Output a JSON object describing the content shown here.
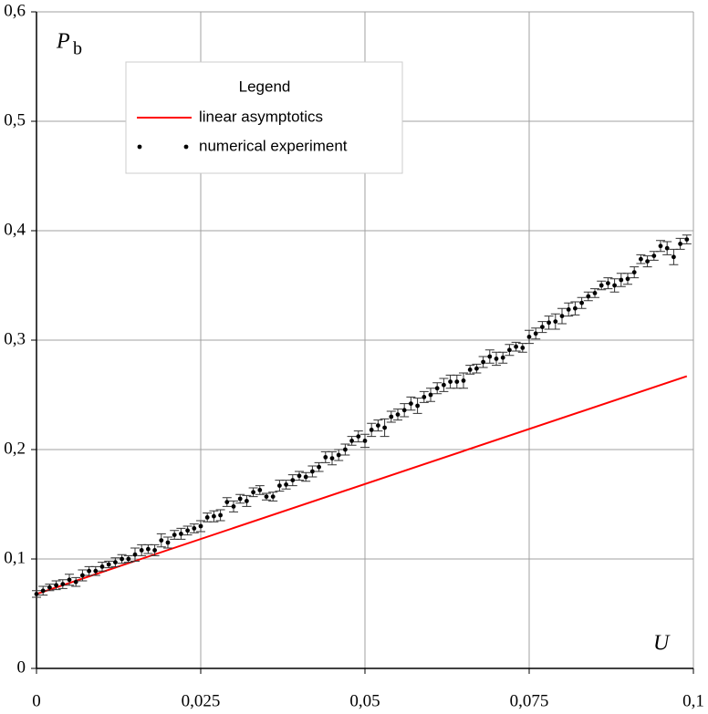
{
  "chart_data": {
    "type": "scatter",
    "x_label": "U",
    "y_label": "P",
    "y_label_subscript": "b",
    "legend_title": "Legend",
    "xlim": [
      0,
      0.1
    ],
    "ylim": [
      0,
      0.6
    ],
    "xticks": [
      0,
      {
        "value": 0.025,
        "label": "0,025"
      },
      {
        "value": 0.05,
        "label": "0,05"
      },
      {
        "value": 0.075,
        "label": "0,075"
      },
      {
        "value": 0.1,
        "label": "0,1"
      }
    ],
    "yticks": [
      0,
      {
        "value": 0.1,
        "label": "0,1"
      },
      {
        "value": 0.2,
        "label": "0,2"
      },
      {
        "value": 0.3,
        "label": "0,3"
      },
      {
        "value": 0.4,
        "label": "0,4"
      },
      {
        "value": 0.5,
        "label": "0,5"
      },
      {
        "value": 0.6,
        "label": "0,6"
      }
    ],
    "grid": true,
    "series": [
      {
        "name": "linear asymptotics",
        "type": "line",
        "color": "#ff0000",
        "x": [
          0,
          0.099
        ],
        "values": [
          0.068,
          0.267
        ]
      },
      {
        "name": "numerical experiment",
        "type": "scatter",
        "color": "#000000",
        "x": [
          0,
          0.001,
          0.002,
          0.003,
          0.004,
          0.005,
          0.006,
          0.007,
          0.008,
          0.009,
          0.01,
          0.011,
          0.012,
          0.013,
          0.014,
          0.015,
          0.016,
          0.017,
          0.018,
          0.019,
          0.02,
          0.021,
          0.022,
          0.023,
          0.024,
          0.025,
          0.026,
          0.027,
          0.028,
          0.029,
          0.03,
          0.031,
          0.032,
          0.033,
          0.034,
          0.035,
          0.036,
          0.037,
          0.038,
          0.039,
          0.04,
          0.041,
          0.042,
          0.043,
          0.044,
          0.045,
          0.046,
          0.047,
          0.048,
          0.049,
          0.05,
          0.051,
          0.052,
          0.053,
          0.054,
          0.055,
          0.056,
          0.057,
          0.058,
          0.059,
          0.06,
          0.061,
          0.062,
          0.063,
          0.064,
          0.065,
          0.066,
          0.067,
          0.068,
          0.069,
          0.07,
          0.071,
          0.072,
          0.073,
          0.074,
          0.075,
          0.076,
          0.077,
          0.078,
          0.079,
          0.08,
          0.081,
          0.082,
          0.083,
          0.084,
          0.085,
          0.086,
          0.087,
          0.088,
          0.089,
          0.09,
          0.091,
          0.092,
          0.093,
          0.094,
          0.095,
          0.096,
          0.097,
          0.098,
          0.099
        ],
        "values": [
          0.068,
          0.071,
          0.074,
          0.076,
          0.077,
          0.081,
          0.079,
          0.085,
          0.089,
          0.089,
          0.093,
          0.095,
          0.097,
          0.1,
          0.1,
          0.104,
          0.108,
          0.109,
          0.108,
          0.117,
          0.115,
          0.122,
          0.123,
          0.126,
          0.128,
          0.13,
          0.138,
          0.139,
          0.14,
          0.152,
          0.148,
          0.155,
          0.153,
          0.161,
          0.163,
          0.157,
          0.157,
          0.167,
          0.168,
          0.172,
          0.176,
          0.175,
          0.18,
          0.184,
          0.193,
          0.192,
          0.195,
          0.2,
          0.208,
          0.212,
          0.208,
          0.218,
          0.222,
          0.22,
          0.23,
          0.232,
          0.236,
          0.242,
          0.24,
          0.248,
          0.25,
          0.256,
          0.259,
          0.262,
          0.262,
          0.263,
          0.273,
          0.274,
          0.28,
          0.285,
          0.283,
          0.284,
          0.291,
          0.294,
          0.293,
          0.303,
          0.306,
          0.312,
          0.316,
          0.317,
          0.322,
          0.328,
          0.329,
          0.334,
          0.34,
          0.343,
          0.35,
          0.352,
          0.35,
          0.355,
          0.356,
          0.362,
          0.374,
          0.372,
          0.377,
          0.386,
          0.384,
          0.376,
          0.388,
          0.392
        ],
        "errors": [
          0.003,
          0.004,
          0.003,
          0.004,
          0.004,
          0.005,
          0.004,
          0.005,
          0.004,
          0.004,
          0.004,
          0.003,
          0.004,
          0.004,
          0.003,
          0.006,
          0.005,
          0.004,
          0.005,
          0.006,
          0.005,
          0.004,
          0.005,
          0.004,
          0.004,
          0.005,
          0.004,
          0.005,
          0.005,
          0.004,
          0.005,
          0.004,
          0.005,
          0.004,
          0.004,
          0.003,
          0.004,
          0.005,
          0.004,
          0.005,
          0.004,
          0.004,
          0.005,
          0.004,
          0.005,
          0.006,
          0.005,
          0.005,
          0.004,
          0.005,
          0.006,
          0.006,
          0.005,
          0.008,
          0.005,
          0.005,
          0.006,
          0.006,
          0.007,
          0.005,
          0.006,
          0.005,
          0.006,
          0.006,
          0.006,
          0.007,
          0.004,
          0.004,
          0.005,
          0.006,
          0.006,
          0.005,
          0.005,
          0.004,
          0.004,
          0.006,
          0.005,
          0.005,
          0.006,
          0.007,
          0.007,
          0.006,
          0.006,
          0.005,
          0.004,
          0.004,
          0.004,
          0.005,
          0.006,
          0.006,
          0.005,
          0.005,
          0.004,
          0.005,
          0.004,
          0.005,
          0.006,
          0.007,
          0.005,
          0.004
        ]
      }
    ]
  }
}
